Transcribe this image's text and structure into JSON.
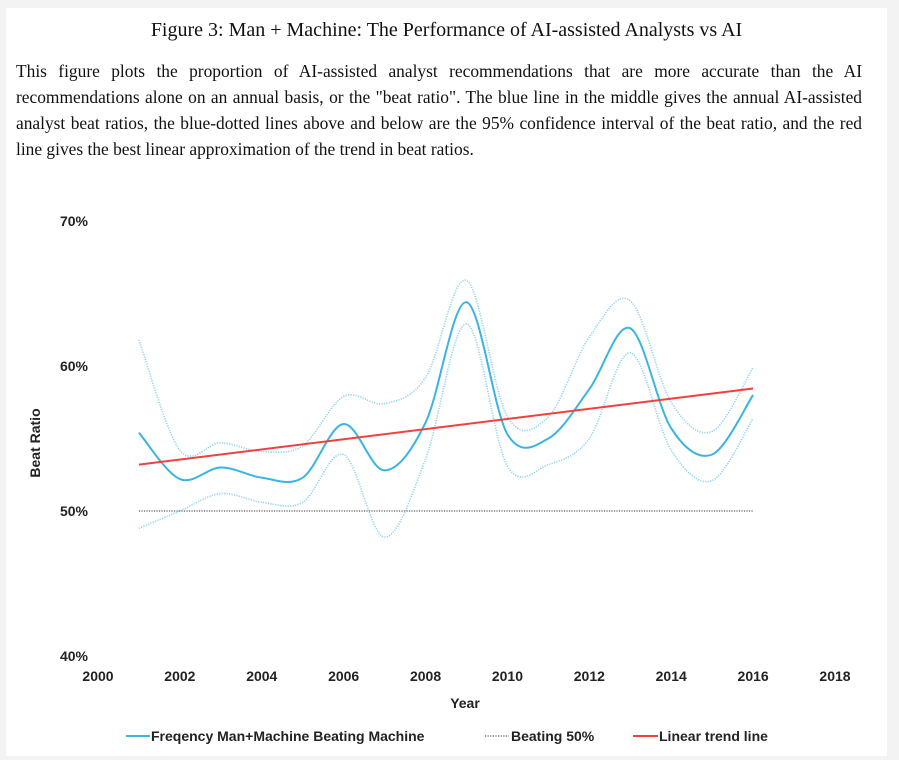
{
  "figure": {
    "title": "Figure 3: Man + Machine: The Performance of AI-assisted Analysts vs AI",
    "caption": "This figure plots the proportion of AI-assisted analyst recommendations that are more accurate than the AI recommendations alone on an annual basis, or the \"beat ratio\". The blue line in the middle gives the annual AI-assisted analyst beat ratios, the blue-dotted lines above and below are the 95% confidence interval of the beat ratio, and the red line gives the best linear approximation of the trend in beat ratios."
  },
  "chart_data": {
    "type": "line",
    "xlabel": "Year",
    "ylabel": "Beat Ratio",
    "xlim": [
      2000,
      2018
    ],
    "ylim": [
      40,
      70
    ],
    "x_ticks": [
      "2000",
      "2002",
      "2004",
      "2006",
      "2008",
      "2010",
      "2012",
      "2014",
      "2016",
      "2018"
    ],
    "y_ticks": [
      "40%",
      "50%",
      "60%",
      "70%"
    ],
    "grid": false,
    "legend_position": "bottom",
    "x": [
      2001,
      2002,
      2003,
      2004,
      2005,
      2006,
      2007,
      2008,
      2009,
      2010,
      2011,
      2012,
      2013,
      2014,
      2015,
      2016
    ],
    "series": [
      {
        "name": "Freqency Man+Machine Beating Machine",
        "style": "solid",
        "color": "#3ab4e0",
        "values": [
          55.4,
          52.2,
          53.0,
          52.3,
          52.3,
          56.0,
          52.8,
          56.1,
          64.4,
          55.3,
          55.0,
          58.4,
          62.6,
          55.7,
          53.9,
          58.0
        ]
      },
      {
        "name": "Beating 50%",
        "style": "dotted",
        "color": "#777777",
        "values": [
          50,
          50,
          50,
          50,
          50,
          50,
          50,
          50,
          50,
          50,
          50,
          50,
          50,
          50,
          50,
          50
        ]
      },
      {
        "name": "Linear trend line",
        "style": "solid",
        "color": "#f04040",
        "values": [
          53.2,
          53.55,
          53.9,
          54.25,
          54.6,
          54.95,
          55.3,
          55.65,
          56.0,
          56.35,
          56.7,
          57.05,
          57.4,
          57.75,
          58.1,
          58.45
        ]
      }
    ],
    "confidence_interval": {
      "color": "#8fd3ef",
      "style": "dotted",
      "upper": [
        61.8,
        54.2,
        54.7,
        54.1,
        54.5,
        57.9,
        57.4,
        59.2,
        65.9,
        56.5,
        56.5,
        62.0,
        64.5,
        57.5,
        55.5,
        59.9
      ],
      "lower": [
        48.8,
        50.0,
        51.2,
        50.6,
        50.6,
        53.9,
        48.2,
        53.6,
        62.9,
        53.1,
        53.2,
        55.0,
        60.9,
        54.2,
        52.1,
        56.4
      ]
    }
  }
}
